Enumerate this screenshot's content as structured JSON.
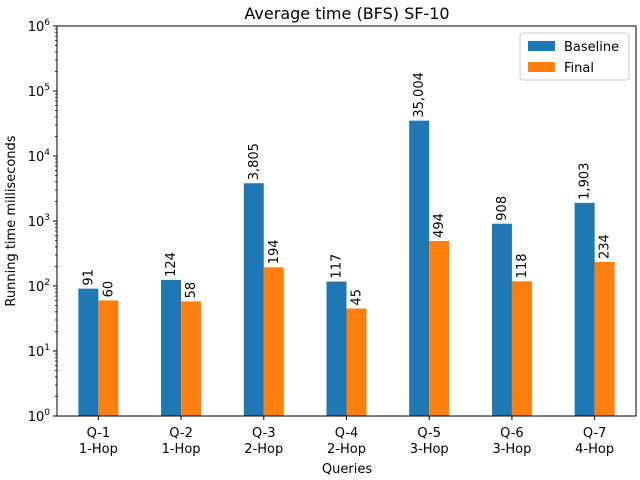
{
  "chart_data": {
    "type": "bar",
    "title": "Average time (BFS) SF-10",
    "xlabel": "Queries",
    "ylabel": "Running time milliseconds",
    "yscale": "log",
    "ylim": [
      1,
      1000000
    ],
    "categories": [
      [
        "Q-1",
        "1-Hop"
      ],
      [
        "Q-2",
        "1-Hop"
      ],
      [
        "Q-3",
        "2-Hop"
      ],
      [
        "Q-4",
        "2-Hop"
      ],
      [
        "Q-5",
        "3-Hop"
      ],
      [
        "Q-6",
        "3-Hop"
      ],
      [
        "Q-7",
        "4-Hop"
      ]
    ],
    "series": [
      {
        "name": "Baseline",
        "color": "#1f77b4",
        "values": [
          91,
          124,
          3805,
          117,
          35004,
          908,
          1903
        ],
        "labels": [
          "91",
          "124",
          "3,805",
          "117",
          "35,004",
          "908",
          "1,903"
        ]
      },
      {
        "name": "Final",
        "color": "#ff7f0e",
        "values": [
          60,
          58,
          194,
          45,
          494,
          118,
          234
        ],
        "labels": [
          "60",
          "58",
          "194",
          "45",
          "494",
          "118",
          "234"
        ]
      }
    ],
    "legend": "top-right",
    "grid": false
  }
}
